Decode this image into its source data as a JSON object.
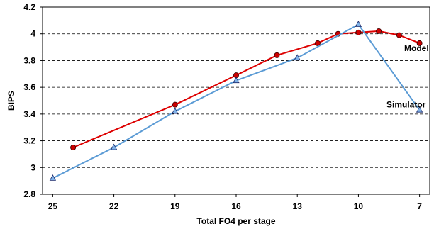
{
  "chart_data": {
    "type": "line",
    "xlabel": "Total FO4 per stage",
    "ylabel": "BIPS",
    "xlim": [
      25.5,
      6.5
    ],
    "ylim": [
      2.8,
      4.2
    ],
    "x_ticks": [
      25,
      22,
      19,
      16,
      13,
      10,
      7
    ],
    "y_ticks": [
      2.8,
      3,
      3.2,
      3.4,
      3.6,
      3.8,
      4,
      4.2
    ],
    "y_tick_labels": [
      "2.8",
      "3",
      "3.2",
      "3.4",
      "3.6",
      "3.8",
      "4",
      "4.2"
    ],
    "grid": "horizontal dashed",
    "series": [
      {
        "name": "Model",
        "color": "#dd0000",
        "marker": "circle",
        "x": [
          24,
          19,
          16,
          14,
          12,
          11,
          10,
          9,
          8,
          7
        ],
        "y": [
          3.15,
          3.47,
          3.69,
          3.84,
          3.93,
          4.0,
          4.01,
          4.02,
          3.99,
          3.93
        ]
      },
      {
        "name": "Simulator",
        "color": "#5b9bd5",
        "marker": "triangle",
        "x": [
          25,
          22,
          19,
          16,
          13,
          10,
          7
        ],
        "y": [
          2.92,
          3.15,
          3.42,
          3.65,
          3.82,
          4.07,
          3.43
        ]
      }
    ]
  }
}
